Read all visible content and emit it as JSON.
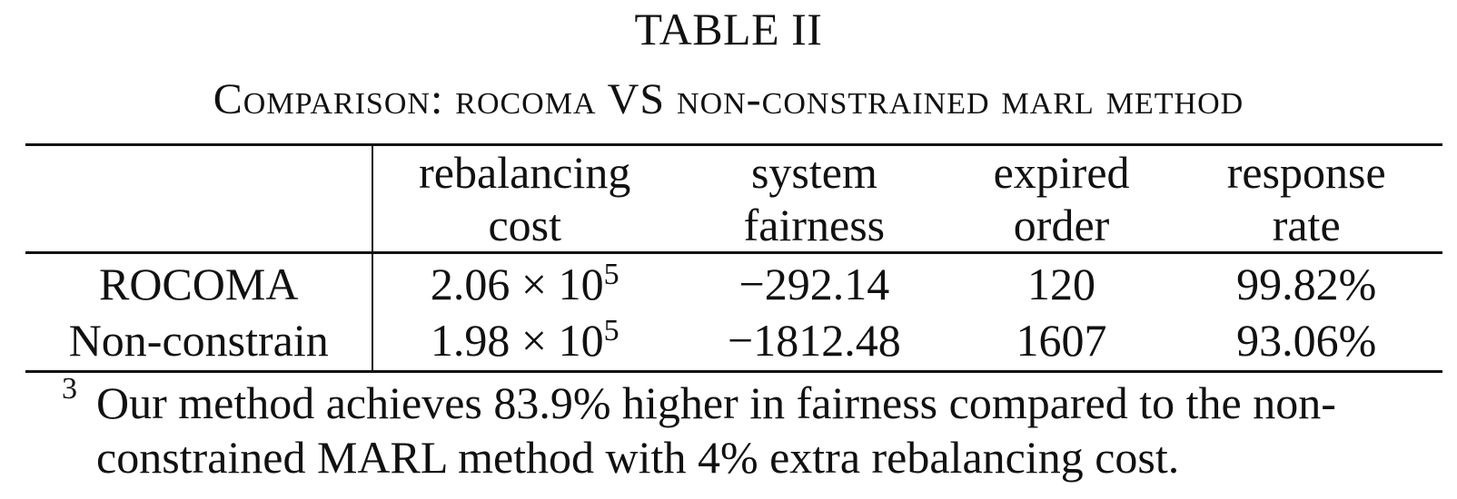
{
  "table": {
    "label": "TABLE II",
    "caption": "Comparison: rocoma VS non-constrained marl method",
    "columns": [
      {
        "line1": "",
        "line2": ""
      },
      {
        "line1": "rebalancing",
        "line2": "cost"
      },
      {
        "line1": "system",
        "line2": "fairness"
      },
      {
        "line1": "expired",
        "line2": "order"
      },
      {
        "line1": "response",
        "line2": "rate"
      }
    ],
    "rows": [
      {
        "method": "ROCOMA",
        "cost_mantissa": "2.06 × 10",
        "cost_exponent": "5",
        "fairness": "−292.14",
        "expired": "120",
        "response": "99.82%"
      },
      {
        "method": "Non-constrain",
        "cost_mantissa": "1.98 × 10",
        "cost_exponent": "5",
        "fairness": "−1812.48",
        "expired": "1607",
        "response": "93.06%"
      }
    ]
  },
  "footnote": {
    "marker": "3",
    "line1": "Our method achieves 83.9% higher in fairness compared to the non-",
    "line2": "constrained MARL method with 4% extra rebalancing cost."
  }
}
